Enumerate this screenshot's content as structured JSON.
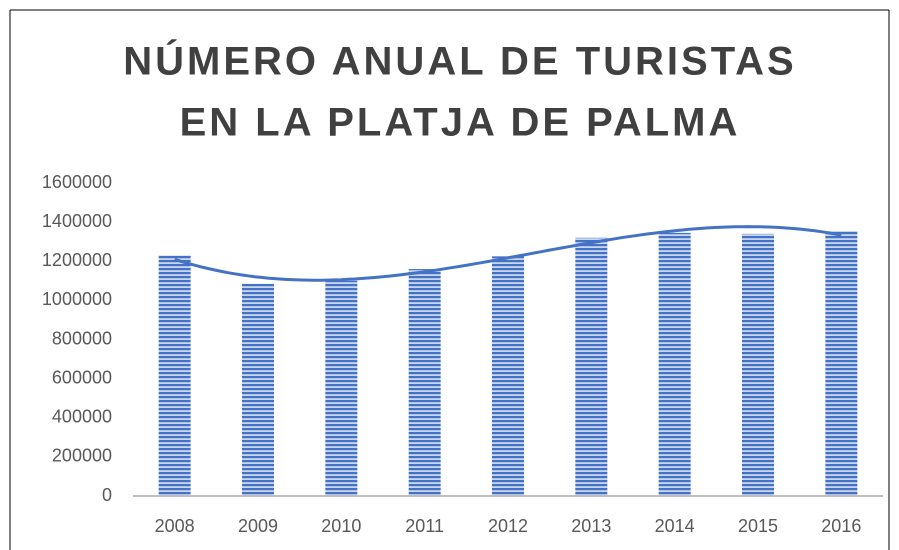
{
  "chart_data": {
    "type": "bar",
    "title": [
      "NÚMERO ANUAL DE TURISTAS",
      "EN LA PLATJA DE PALMA"
    ],
    "categories": [
      "2008",
      "2009",
      "2010",
      "2011",
      "2012",
      "2013",
      "2014",
      "2015",
      "2016"
    ],
    "values": [
      1230000,
      1085000,
      1100000,
      1160000,
      1225000,
      1320000,
      1345000,
      1340000,
      1355000
    ],
    "color": "#4472c4",
    "ylim": [
      0,
      1600000
    ],
    "yticks": [
      0,
      200000,
      400000,
      600000,
      800000,
      1000000,
      1200000,
      1400000,
      1600000
    ],
    "grid": false,
    "trendline": true
  }
}
